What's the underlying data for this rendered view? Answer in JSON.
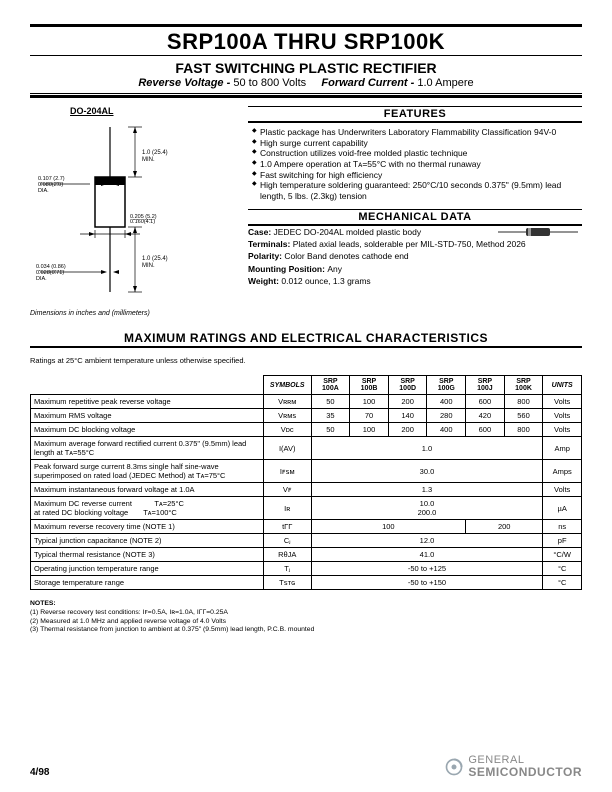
{
  "header": {
    "title": "SRP100A THRU SRP100K",
    "subtitle": "FAST SWITCHING PLASTIC RECTIFIER",
    "rev_voltage_label": "Reverse Voltage -",
    "rev_voltage_val": "50 to 800 Volts",
    "fwd_current_label": "Forward Current -",
    "fwd_current_val": "1.0 Ampere"
  },
  "package": {
    "name": "DO-204AL",
    "dim_note": "Dimensions in inches and (millimeters)"
  },
  "features": {
    "heading": "FEATURES",
    "items": [
      "Plastic package has Underwriters Laboratory Flammability Classification 94V-0",
      "High surge current capability",
      "Construction utilizes void-free molded plastic technique",
      "1.0 Ampere operation at Tᴀ=55°C with no thermal runaway",
      "Fast switching for high efficiency",
      "High temperature soldering guaranteed: 250°C/10 seconds 0.375\" (9.5mm) lead length, 5 lbs. (2.3kg) tension"
    ]
  },
  "mechanical": {
    "heading": "MECHANICAL DATA",
    "rows": [
      {
        "k": "Case:",
        "v": "JEDEC DO-204AL molded plastic body"
      },
      {
        "k": "Terminals:",
        "v": "Plated axial leads, solderable per MIL-STD-750, Method 2026"
      },
      {
        "k": "Polarity:",
        "v": "Color Band denotes cathode end"
      },
      {
        "k": "Mounting Position:",
        "v": "Any"
      },
      {
        "k": "Weight:",
        "v": "0.012 ounce, 1.3 grams"
      }
    ]
  },
  "characteristics": {
    "heading": "MAXIMUM RATINGS AND ELECTRICAL CHARACTERISTICS",
    "note": "Ratings at 25°C ambient temperature unless otherwise specified.",
    "col_headers": [
      "",
      "SYMBOLS",
      "SRP 100A",
      "SRP 100B",
      "SRP 100D",
      "SRP 100G",
      "SRP 100J",
      "SRP 100K",
      "UNITS"
    ],
    "rows": [
      {
        "desc": "Maximum repetitive peak reverse voltage",
        "sym": "Vʀʀᴍ",
        "vals": [
          "50",
          "100",
          "200",
          "400",
          "600",
          "800"
        ],
        "unit": "Volts"
      },
      {
        "desc": "Maximum RMS voltage",
        "sym": "Vʀᴍꜱ",
        "vals": [
          "35",
          "70",
          "140",
          "280",
          "420",
          "560"
        ],
        "unit": "Volts"
      },
      {
        "desc": "Maximum DC blocking voltage",
        "sym": "Vᴅᴄ",
        "vals": [
          "50",
          "100",
          "200",
          "400",
          "600",
          "800"
        ],
        "unit": "Volts"
      },
      {
        "desc": "Maximum average forward rectified current 0.375\" (9.5mm) lead length at Tᴀ=55°C",
        "sym": "I(AV)",
        "span": "1.0",
        "unit": "Amp"
      },
      {
        "desc": "Peak forward surge current 8.3ms single half sine-wave superimposed on rated load (JEDEC Method) at Tᴀ=75°C",
        "sym": "Iꜰꜱᴍ",
        "span": "30.0",
        "unit": "Amps"
      },
      {
        "desc": "Maximum instantaneous forward voltage at 1.0A",
        "sym": "Vꜰ",
        "span": "1.3",
        "unit": "Volts"
      },
      {
        "desc": "Maximum DC reverse current   Tᴀ=25°C\nat rated DC blocking voltage  Tᴀ=100°C",
        "sym": "Iʀ",
        "span": "10.0\n200.0",
        "unit": "µA"
      },
      {
        "desc": "Maximum reverse recovery time (NOTE 1)",
        "sym": "tΓΓ",
        "split": [
          "100",
          "200"
        ],
        "unit": "ns"
      },
      {
        "desc": "Typical junction capacitance (NOTE 2)",
        "sym": "Cⱼ",
        "span": "12.0",
        "unit": "pF"
      },
      {
        "desc": "Typical thermal resistance (NOTE 3)",
        "sym": "RθJA",
        "span": "41.0",
        "unit": "°C/W"
      },
      {
        "desc": "Operating junction temperature range",
        "sym": "Tⱼ",
        "span": "-50 to +125",
        "unit": "°C"
      },
      {
        "desc": "Storage temperature range",
        "sym": "Tꜱᴛɢ",
        "span": "-50 to +150",
        "unit": "°C"
      }
    ]
  },
  "notes": {
    "heading": "NOTES:",
    "items": [
      "(1) Reverse recovery test conditions: Iꜰ=0.5A, Iʀ=1.0A, IΓΓ=0.25A",
      "(2) Measured at 1.0 MHz and applied reverse voltage of 4.0 Volts",
      "(3) Thermal resistance from junction to ambient at 0.375\" (9.5mm) lead length, P.C.B. mounted"
    ]
  },
  "footer": {
    "date": "4/98",
    "company_top": "GENERAL",
    "company_bottom": "SEMICONDUCTOR"
  },
  "colors": {
    "rule": "#000000",
    "logo": "#9aa7b0"
  }
}
